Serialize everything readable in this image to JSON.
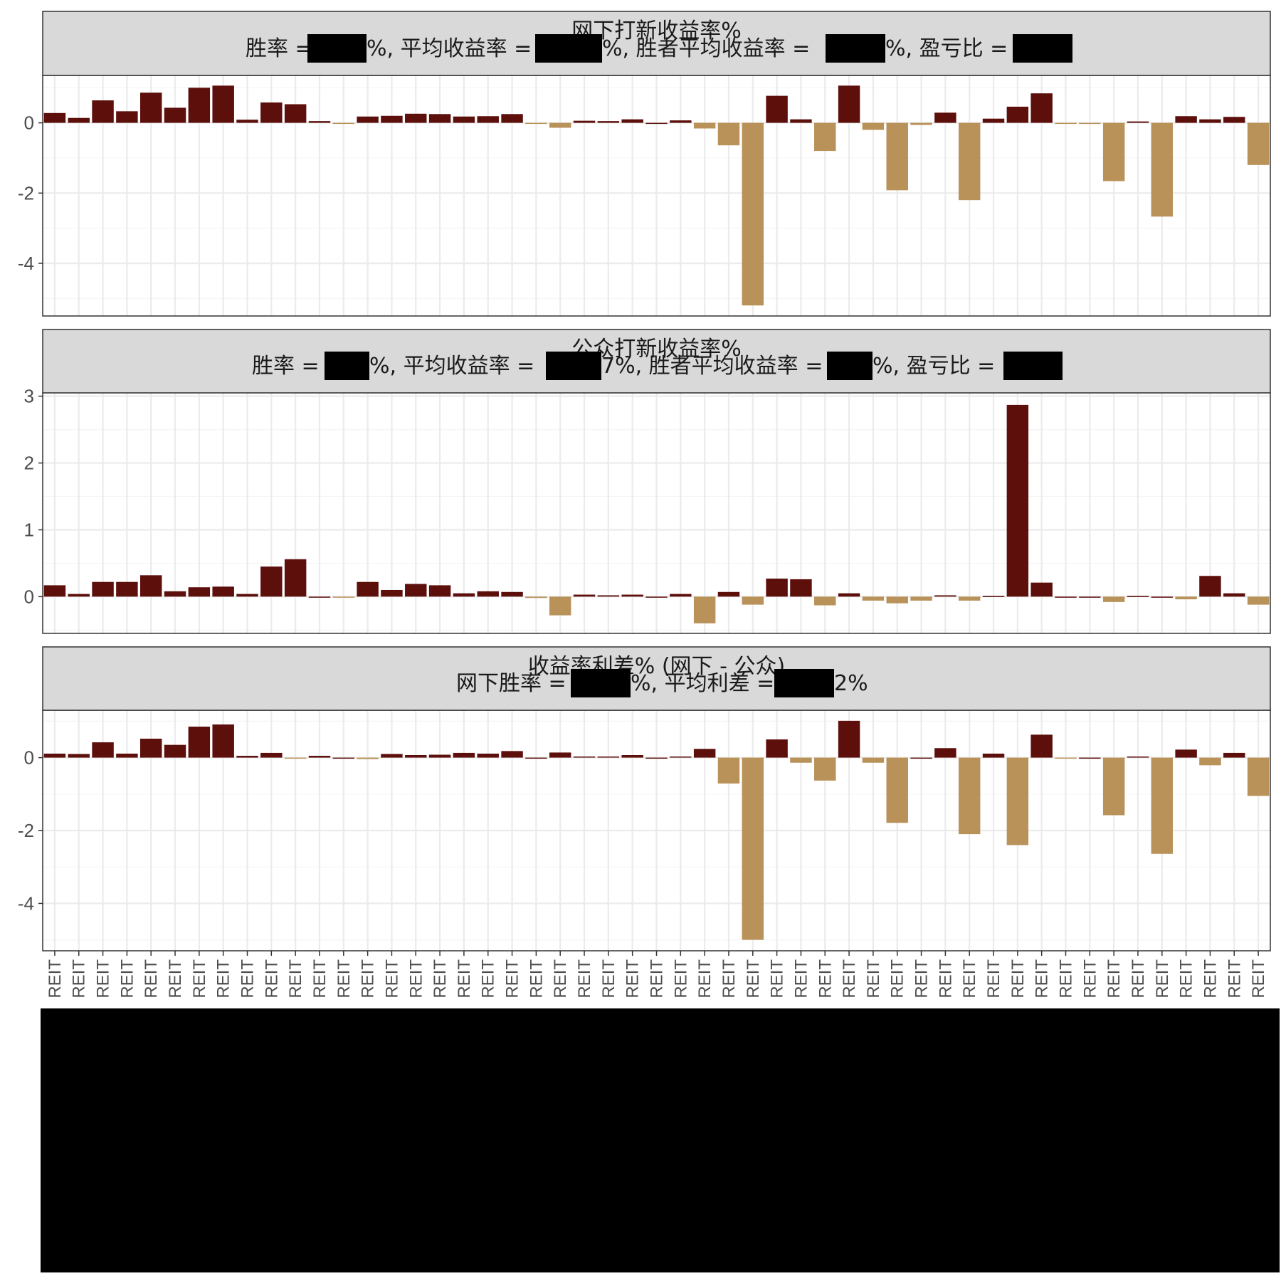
{
  "colors": {
    "positive": "#5c0f0b",
    "negative": "#b9925a",
    "strip_bg": "#d9d9d9",
    "grid_major": "#ebebeb",
    "grid_minor": "#f5f5f5",
    "redaction": "#000000"
  },
  "chart_data": [
    {
      "type": "bar",
      "title": "网下打新收益率%",
      "subtitle_parts": [
        "胜率 = ",
        "%, 平均收益率 = ",
        "%, 胜者平均收益率 = ",
        "%, 盈亏比 = "
      ],
      "ylim": [
        -5.5,
        1.35
      ],
      "yticks": [
        0,
        -2,
        -4
      ],
      "tick_labels": [
        "0",
        "-2",
        "-4"
      ],
      "values": [
        0.28,
        0.14,
        0.64,
        0.33,
        0.86,
        0.43,
        1.0,
        1.06,
        0.09,
        0.58,
        0.53,
        0.05,
        -0.01,
        0.18,
        0.2,
        0.26,
        0.25,
        0.18,
        0.19,
        0.25,
        -0.02,
        -0.14,
        0.06,
        0.05,
        0.1,
        0.0,
        0.07,
        -0.16,
        -0.64,
        -5.2,
        0.77,
        0.1,
        -0.8,
        1.06,
        -0.2,
        -1.92,
        -0.06,
        0.29,
        -2.2,
        0.12,
        0.46,
        0.84,
        -0.02,
        -0.01,
        -1.66,
        0.04,
        -2.67,
        0.19,
        0.1,
        0.17,
        -1.2
      ]
    },
    {
      "type": "bar",
      "title": "公众打新收益率%",
      "subtitle_parts": [
        "胜率 = ",
        "%, 平均收益率 = ",
        "7%, 胜者平均收益率 = ",
        "%, 盈亏比 = "
      ],
      "ylim": [
        -0.55,
        3.05
      ],
      "yticks": [
        3,
        2,
        1,
        0
      ],
      "tick_labels": [
        "3",
        "2",
        "1",
        "0"
      ],
      "values": [
        0.17,
        0.04,
        0.22,
        0.22,
        0.32,
        0.08,
        0.14,
        0.15,
        0.04,
        0.45,
        0.56,
        0.0,
        -0.01,
        0.22,
        0.1,
        0.19,
        0.17,
        0.05,
        0.08,
        0.07,
        -0.02,
        -0.28,
        0.03,
        0.02,
        0.03,
        0.0,
        0.04,
        -0.4,
        0.07,
        -0.12,
        0.27,
        0.26,
        -0.13,
        0.05,
        -0.06,
        -0.1,
        -0.06,
        0.02,
        -0.06,
        0.01,
        2.87,
        0.21,
        0.0,
        0.0,
        -0.08,
        0.01,
        0.0,
        -0.04,
        0.31,
        0.05,
        -0.12
      ]
    },
    {
      "type": "bar",
      "title": "收益率利差% (网下 - 公众)",
      "subtitle_parts": [
        "网下胜率 = ",
        "%, 平均利差 = ",
        "2%"
      ],
      "ylim": [
        -5.3,
        1.3
      ],
      "yticks": [
        0,
        -2,
        -4
      ],
      "tick_labels": [
        "0",
        "-2",
        "-4"
      ],
      "values": [
        0.11,
        0.1,
        0.42,
        0.11,
        0.52,
        0.35,
        0.85,
        0.91,
        0.05,
        0.13,
        -0.03,
        0.05,
        0.0,
        -0.04,
        0.1,
        0.07,
        0.08,
        0.13,
        0.11,
        0.18,
        0.0,
        0.14,
        0.03,
        0.03,
        0.07,
        0.0,
        0.03,
        0.24,
        -0.71,
        -5.0,
        0.5,
        -0.14,
        -0.63,
        1.01,
        -0.14,
        -1.79,
        0.0,
        0.26,
        -2.1,
        0.11,
        -2.4,
        0.63,
        -0.02,
        0.0,
        -1.58,
        0.03,
        -2.64,
        0.22,
        -0.21,
        0.13,
        -1.05
      ]
    }
  ],
  "x_axis": {
    "category_label": "REIT",
    "count": 51
  }
}
